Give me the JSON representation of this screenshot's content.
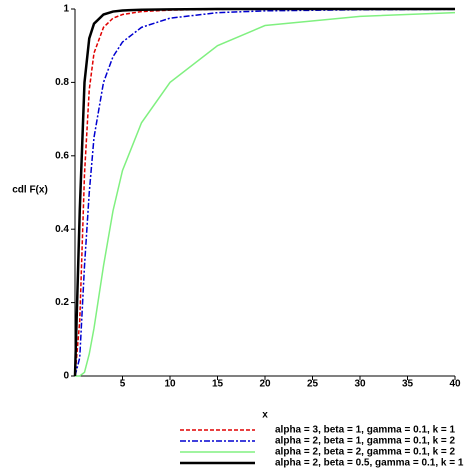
{
  "chart_data": {
    "type": "line",
    "xlabel": "x",
    "ylabel": "cdl F(x)",
    "x": [
      0,
      0.5,
      1,
      1.5,
      2,
      3,
      4,
      5,
      7,
      10,
      15,
      20,
      30,
      40
    ],
    "series": [
      {
        "name": "alpha = 3, beta = 1, gamma = 0.1, k = 1",
        "color": "#e00000",
        "style": "dash",
        "width": 1.5,
        "values": [
          0,
          0.15,
          0.55,
          0.78,
          0.88,
          0.95,
          0.975,
          0.985,
          0.993,
          0.997,
          0.999,
          1,
          1,
          1
        ]
      },
      {
        "name": "alpha = 2, beta = 1, gamma = 0.1, k = 2",
        "color": "#0000d0",
        "style": "dashdot",
        "width": 1.5,
        "values": [
          0,
          0.05,
          0.3,
          0.5,
          0.65,
          0.8,
          0.87,
          0.91,
          0.95,
          0.975,
          0.99,
          0.995,
          0.998,
          0.999
        ]
      },
      {
        "name": "alpha = 2, beta = 2, gamma = 0.1, k = 2",
        "color": "#80f080",
        "style": "solid",
        "width": 1.5,
        "values": [
          0,
          0,
          0.01,
          0.06,
          0.13,
          0.3,
          0.45,
          0.56,
          0.69,
          0.8,
          0.9,
          0.955,
          0.98,
          0.99
        ]
      },
      {
        "name": "alpha = 2, beta = 0.5, gamma = 0.1, k = 1",
        "color": "#000000",
        "style": "solid",
        "width": 2.5,
        "values": [
          0,
          0.45,
          0.8,
          0.92,
          0.96,
          0.985,
          0.993,
          0.996,
          0.998,
          0.999,
          1,
          1,
          1,
          1
        ]
      }
    ],
    "xlim": [
      0,
      40
    ],
    "xticks": [
      5,
      10,
      15,
      20,
      25,
      30,
      35,
      40
    ],
    "ylim": [
      0,
      1
    ],
    "yticks": [
      0,
      0.2,
      0.4,
      0.6,
      0.8,
      1
    ]
  }
}
